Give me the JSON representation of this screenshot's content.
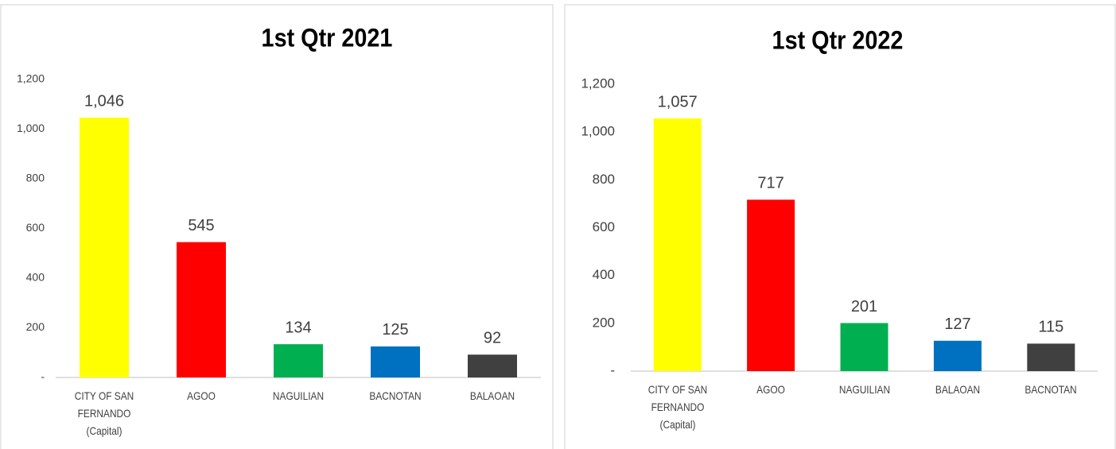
{
  "chart_data": [
    {
      "type": "bar",
      "title": "1st Qtr 2021",
      "categories": [
        "CITY OF SAN\nFERNANDO\n(Capital)",
        "AGOO",
        "NAGUILIAN",
        "BACNOTAN",
        "BALAOAN"
      ],
      "values": [
        1046,
        545,
        134,
        125,
        92
      ],
      "value_labels": [
        "1,046",
        "545",
        "134",
        "125",
        "92"
      ],
      "colors": [
        "#ffff00",
        "#ff0000",
        "#00b050",
        "#0070c0",
        "#404040"
      ],
      "ylim": [
        0,
        1200
      ],
      "yticks": [
        {
          "value": 0,
          "label": "-"
        },
        200,
        400,
        600,
        800,
        {
          "value": 1000,
          "label": "1,000"
        },
        {
          "value": 1200,
          "label": "1,200"
        }
      ],
      "grid": false
    },
    {
      "type": "bar",
      "title": "1st Qtr 2022",
      "categories": [
        "CITY OF SAN\nFERNANDO\n(Capital)",
        "AGOO",
        "NAGUILIAN",
        "BALAOAN",
        "BACNOTAN"
      ],
      "values": [
        1057,
        717,
        201,
        127,
        115
      ],
      "value_labels": [
        "1,057",
        "717",
        "201",
        "127",
        "115"
      ],
      "colors": [
        "#ffff00",
        "#ff0000",
        "#00b050",
        "#0070c0",
        "#404040"
      ],
      "ylim": [
        0,
        1200
      ],
      "yticks": [
        {
          "value": 0,
          "label": "-"
        },
        200,
        400,
        600,
        800,
        {
          "value": 1000,
          "label": "1,000"
        },
        {
          "value": 1200,
          "label": "1,200"
        }
      ],
      "grid": false
    }
  ]
}
